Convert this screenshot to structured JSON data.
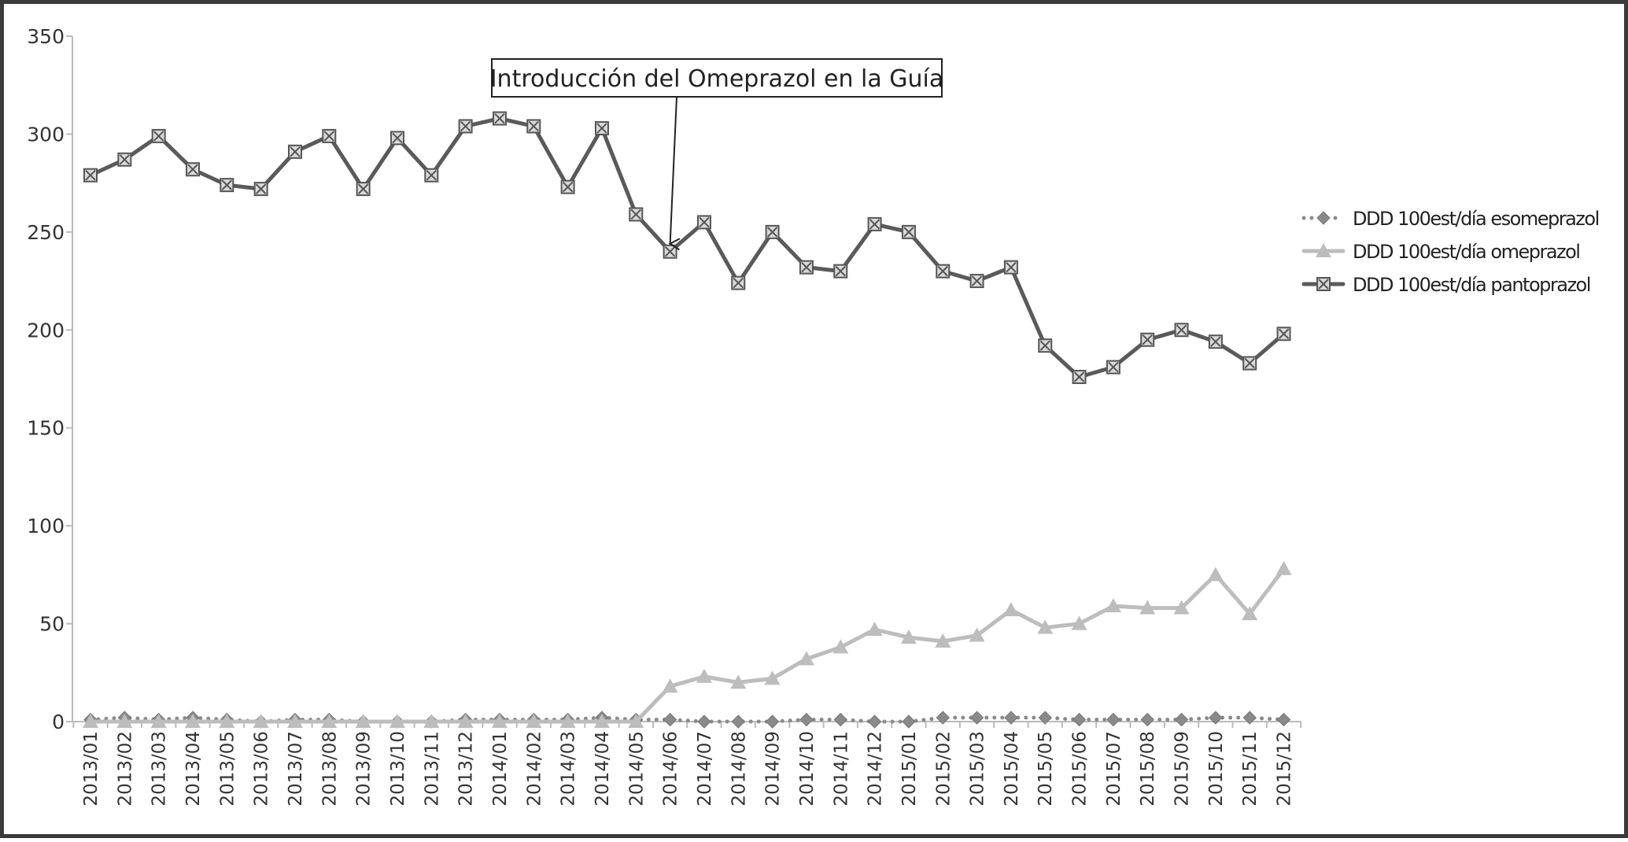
{
  "chart_data": {
    "type": "line",
    "annotation": "Introducción del Omeprazol en la Guía",
    "annotation_category": "2014/06",
    "ylim": [
      0,
      350
    ],
    "yticks": [
      "0",
      "50",
      "100",
      "150",
      "200",
      "250",
      "300",
      "350"
    ],
    "legend_position": "right",
    "grid": false,
    "categories": [
      "2013/01",
      "2013/02",
      "2013/03",
      "2013/04",
      "2013/05",
      "2013/06",
      "2013/07",
      "2013/08",
      "2013/09",
      "2013/10",
      "2013/11",
      "2013/12",
      "2014/01",
      "2014/02",
      "2014/03",
      "2014/04",
      "2014/05",
      "2014/06",
      "2014/07",
      "2014/08",
      "2014/09",
      "2014/10",
      "2014/11",
      "2014/12",
      "2015/01",
      "2015/02",
      "2015/03",
      "2015/04",
      "2015/05",
      "2015/06",
      "2015/07",
      "2015/08",
      "2015/09",
      "2015/10",
      "2015/11",
      "2015/12"
    ],
    "series": [
      {
        "name": "DDD 100est/día esomeprazol",
        "color": "#8a8a8a",
        "marker": "diamond",
        "style": "dotted",
        "values": [
          1,
          2,
          1,
          2,
          1,
          0,
          1,
          1,
          0,
          0,
          0,
          1,
          1,
          1,
          1,
          2,
          1,
          1,
          0,
          0,
          0,
          1,
          1,
          0,
          0,
          2,
          2,
          2,
          2,
          1,
          1,
          1,
          1,
          2,
          2,
          1
        ]
      },
      {
        "name": "DDD 100est/día omeprazol",
        "color": "#bdbdbd",
        "marker": "triangle",
        "style": "solid",
        "values": [
          0,
          0,
          0,
          0,
          0,
          0,
          0,
          0,
          0,
          0,
          0,
          0,
          0,
          0,
          0,
          0,
          0,
          18,
          23,
          20,
          22,
          32,
          38,
          47,
          43,
          41,
          44,
          57,
          48,
          50,
          59,
          58,
          58,
          75,
          55,
          78
        ]
      },
      {
        "name": "DDD 100est/día pantoprazol",
        "color": "#5a5a5a",
        "marker": "xbox",
        "style": "solid",
        "values": [
          279,
          287,
          299,
          282,
          274,
          272,
          291,
          299,
          272,
          298,
          279,
          304,
          308,
          304,
          273,
          303,
          259,
          240,
          255,
          224,
          250,
          232,
          230,
          254,
          250,
          230,
          225,
          232,
          192,
          176,
          181,
          195,
          200,
          194,
          183,
          198
        ]
      }
    ]
  }
}
